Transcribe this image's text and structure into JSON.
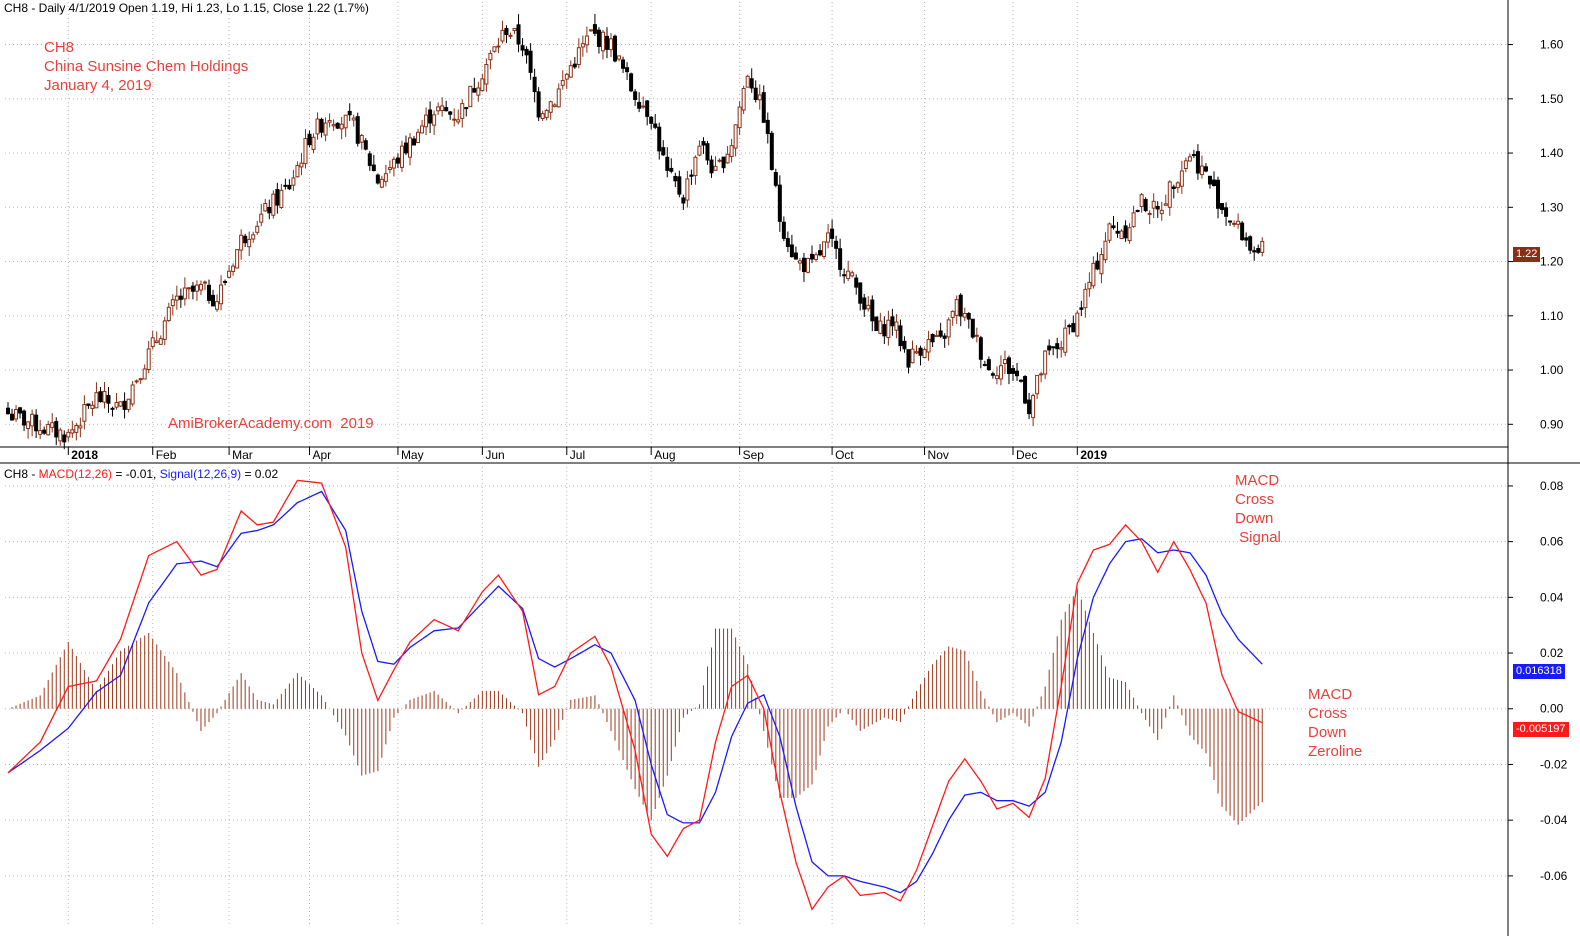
{
  "header": {
    "price_info": "CH8 - Daily 4/1/2019 Open 1.19, Hi 1.23, Lo 1.15, Close 1.22 (1.7%)",
    "ind_prefix": "CH8 - ",
    "macd_label": "MACD(12,26)",
    "macd_value": " = -0.01, ",
    "signal_label": "Signal(12,26,9)",
    "signal_value": " = 0.02"
  },
  "annotations": {
    "symbol": "CH8",
    "company": "China Sunsine Chem Holdings",
    "date": "January 4, 2019",
    "watermark": "AmiBrokerAcademy.com  2019",
    "macd_signal_note": "MACD\nCross\nDown\n Signal",
    "macd_zero_note": "MACD\nCross\nDown\nZeroline"
  },
  "tags": {
    "last_price": "1.22",
    "signal_last": "0.016318",
    "macd_last": "-0.005197"
  },
  "colors": {
    "up_candle": "#8b2f14",
    "down_candle": "#000000",
    "macd_line": "#ff1a1a",
    "signal_line": "#1a1aff",
    "histogram": "#a0391c",
    "annotation": "#e8403a",
    "grid": "#b8b8b8"
  },
  "chart_data": [
    {
      "type": "candlestick",
      "title": "CH8 - Daily",
      "month_labels": [
        "2018",
        "Feb",
        "Mar",
        "Apr",
        "May",
        "Jun",
        "Jul",
        "Aug",
        "Sep",
        "Oct",
        "Nov",
        "Dec",
        "2019"
      ],
      "ylim": [
        0.86,
        1.66
      ],
      "yticks": [
        "0.90",
        "1.00",
        "1.10",
        "1.20",
        "1.30",
        "1.40",
        "1.50",
        "1.60"
      ],
      "grid": true,
      "close_path": [
        {
          "t": 0,
          "v": 0.92
        },
        {
          "t": 10,
          "v": 0.89
        },
        {
          "t": 15,
          "v": 0.88
        },
        {
          "t": 22,
          "v": 0.95
        },
        {
          "t": 28,
          "v": 0.93
        },
        {
          "t": 35,
          "v": 1.03
        },
        {
          "t": 42,
          "v": 1.13
        },
        {
          "t": 48,
          "v": 1.15
        },
        {
          "t": 52,
          "v": 1.13
        },
        {
          "t": 58,
          "v": 1.24
        },
        {
          "t": 65,
          "v": 1.3
        },
        {
          "t": 70,
          "v": 1.34
        },
        {
          "t": 75,
          "v": 1.43
        },
        {
          "t": 80,
          "v": 1.47
        },
        {
          "t": 86,
          "v": 1.45
        },
        {
          "t": 92,
          "v": 1.35
        },
        {
          "t": 96,
          "v": 1.38
        },
        {
          "t": 100,
          "v": 1.42
        },
        {
          "t": 106,
          "v": 1.48
        },
        {
          "t": 112,
          "v": 1.47
        },
        {
          "t": 118,
          "v": 1.55
        },
        {
          "t": 124,
          "v": 1.63
        },
        {
          "t": 128,
          "v": 1.6
        },
        {
          "t": 132,
          "v": 1.48
        },
        {
          "t": 136,
          "v": 1.5
        },
        {
          "t": 140,
          "v": 1.56
        },
        {
          "t": 145,
          "v": 1.62
        },
        {
          "t": 150,
          "v": 1.6
        },
        {
          "t": 155,
          "v": 1.52
        },
        {
          "t": 160,
          "v": 1.47
        },
        {
          "t": 164,
          "v": 1.36
        },
        {
          "t": 168,
          "v": 1.32
        },
        {
          "t": 172,
          "v": 1.42
        },
        {
          "t": 176,
          "v": 1.36
        },
        {
          "t": 180,
          "v": 1.42
        },
        {
          "t": 184,
          "v": 1.55
        },
        {
          "t": 188,
          "v": 1.47
        },
        {
          "t": 192,
          "v": 1.28
        },
        {
          "t": 196,
          "v": 1.2
        },
        {
          "t": 200,
          "v": 1.19
        },
        {
          "t": 204,
          "v": 1.24
        },
        {
          "t": 208,
          "v": 1.19
        },
        {
          "t": 212,
          "v": 1.14
        },
        {
          "t": 216,
          "v": 1.07
        },
        {
          "t": 220,
          "v": 1.09
        },
        {
          "t": 224,
          "v": 1.02
        },
        {
          "t": 228,
          "v": 1.05
        },
        {
          "t": 232,
          "v": 1.05
        },
        {
          "t": 236,
          "v": 1.12
        },
        {
          "t": 240,
          "v": 1.07
        },
        {
          "t": 244,
          "v": 1.0
        },
        {
          "t": 248,
          "v": 1.01
        },
        {
          "t": 252,
          "v": 0.98
        },
        {
          "t": 254,
          "v": 0.93
        },
        {
          "t": 258,
          "v": 1.02
        },
        {
          "t": 262,
          "v": 1.05
        },
        {
          "t": 266,
          "v": 1.1
        },
        {
          "t": 270,
          "v": 1.18
        },
        {
          "t": 274,
          "v": 1.26
        },
        {
          "t": 278,
          "v": 1.26
        },
        {
          "t": 282,
          "v": 1.31
        },
        {
          "t": 286,
          "v": 1.29
        },
        {
          "t": 290,
          "v": 1.35
        },
        {
          "t": 294,
          "v": 1.4
        },
        {
          "t": 298,
          "v": 1.36
        },
        {
          "t": 302,
          "v": 1.3
        },
        {
          "t": 306,
          "v": 1.26
        },
        {
          "t": 310,
          "v": 1.22
        },
        {
          "t": 311,
          "v": 1.2
        },
        {
          "t": 312,
          "v": 1.22
        }
      ]
    },
    {
      "type": "line",
      "title": "MACD(12,26) and Signal(12,26,9)",
      "ylim": [
        -0.078,
        0.085
      ],
      "yticks": [
        "-0.06",
        "-0.04",
        "-0.02",
        "0.00",
        "0.02",
        "0.04",
        "0.06",
        "0.08"
      ],
      "grid": true,
      "series": [
        {
          "name": "MACD(12,26)",
          "points": [
            {
              "t": 0,
              "v": -0.023
            },
            {
              "t": 8,
              "v": -0.012
            },
            {
              "t": 15,
              "v": 0.008
            },
            {
              "t": 22,
              "v": 0.01
            },
            {
              "t": 28,
              "v": 0.025
            },
            {
              "t": 35,
              "v": 0.055
            },
            {
              "t": 42,
              "v": 0.06
            },
            {
              "t": 48,
              "v": 0.048
            },
            {
              "t": 52,
              "v": 0.05
            },
            {
              "t": 58,
              "v": 0.071
            },
            {
              "t": 62,
              "v": 0.066
            },
            {
              "t": 66,
              "v": 0.067
            },
            {
              "t": 72,
              "v": 0.082
            },
            {
              "t": 78,
              "v": 0.081
            },
            {
              "t": 84,
              "v": 0.058
            },
            {
              "t": 88,
              "v": 0.02
            },
            {
              "t": 92,
              "v": 0.003
            },
            {
              "t": 96,
              "v": 0.014
            },
            {
              "t": 100,
              "v": 0.024
            },
            {
              "t": 106,
              "v": 0.032
            },
            {
              "t": 112,
              "v": 0.028
            },
            {
              "t": 118,
              "v": 0.042
            },
            {
              "t": 122,
              "v": 0.048
            },
            {
              "t": 128,
              "v": 0.035
            },
            {
              "t": 132,
              "v": 0.005
            },
            {
              "t": 136,
              "v": 0.008
            },
            {
              "t": 140,
              "v": 0.02
            },
            {
              "t": 146,
              "v": 0.026
            },
            {
              "t": 150,
              "v": 0.015
            },
            {
              "t": 156,
              "v": -0.015
            },
            {
              "t": 160,
              "v": -0.045
            },
            {
              "t": 164,
              "v": -0.053
            },
            {
              "t": 168,
              "v": -0.043
            },
            {
              "t": 172,
              "v": -0.04
            },
            {
              "t": 176,
              "v": -0.012
            },
            {
              "t": 180,
              "v": 0.008
            },
            {
              "t": 184,
              "v": 0.012
            },
            {
              "t": 188,
              "v": 0.0
            },
            {
              "t": 192,
              "v": -0.03
            },
            {
              "t": 196,
              "v": -0.055
            },
            {
              "t": 200,
              "v": -0.072
            },
            {
              "t": 204,
              "v": -0.064
            },
            {
              "t": 208,
              "v": -0.06
            },
            {
              "t": 212,
              "v": -0.067
            },
            {
              "t": 218,
              "v": -0.066
            },
            {
              "t": 222,
              "v": -0.069
            },
            {
              "t": 226,
              "v": -0.058
            },
            {
              "t": 230,
              "v": -0.042
            },
            {
              "t": 234,
              "v": -0.026
            },
            {
              "t": 238,
              "v": -0.018
            },
            {
              "t": 242,
              "v": -0.026
            },
            {
              "t": 246,
              "v": -0.036
            },
            {
              "t": 250,
              "v": -0.034
            },
            {
              "t": 254,
              "v": -0.039
            },
            {
              "t": 258,
              "v": -0.025
            },
            {
              "t": 262,
              "v": 0.008
            },
            {
              "t": 266,
              "v": 0.045
            },
            {
              "t": 270,
              "v": 0.057
            },
            {
              "t": 274,
              "v": 0.059
            },
            {
              "t": 278,
              "v": 0.066
            },
            {
              "t": 282,
              "v": 0.06
            },
            {
              "t": 286,
              "v": 0.049
            },
            {
              "t": 290,
              "v": 0.06
            },
            {
              "t": 294,
              "v": 0.05
            },
            {
              "t": 298,
              "v": 0.038
            },
            {
              "t": 302,
              "v": 0.012
            },
            {
              "t": 306,
              "v": -0.001
            },
            {
              "t": 312,
              "v": -0.005
            }
          ]
        },
        {
          "name": "Signal(12,26,9)",
          "points": [
            {
              "t": 0,
              "v": -0.023
            },
            {
              "t": 8,
              "v": -0.015
            },
            {
              "t": 15,
              "v": -0.007
            },
            {
              "t": 22,
              "v": 0.006
            },
            {
              "t": 28,
              "v": 0.012
            },
            {
              "t": 35,
              "v": 0.038
            },
            {
              "t": 42,
              "v": 0.052
            },
            {
              "t": 48,
              "v": 0.053
            },
            {
              "t": 52,
              "v": 0.051
            },
            {
              "t": 58,
              "v": 0.063
            },
            {
              "t": 62,
              "v": 0.064
            },
            {
              "t": 66,
              "v": 0.066
            },
            {
              "t": 72,
              "v": 0.074
            },
            {
              "t": 78,
              "v": 0.078
            },
            {
              "t": 84,
              "v": 0.064
            },
            {
              "t": 88,
              "v": 0.035
            },
            {
              "t": 92,
              "v": 0.017
            },
            {
              "t": 96,
              "v": 0.016
            },
            {
              "t": 100,
              "v": 0.022
            },
            {
              "t": 106,
              "v": 0.028
            },
            {
              "t": 112,
              "v": 0.029
            },
            {
              "t": 118,
              "v": 0.038
            },
            {
              "t": 122,
              "v": 0.044
            },
            {
              "t": 128,
              "v": 0.036
            },
            {
              "t": 132,
              "v": 0.018
            },
            {
              "t": 136,
              "v": 0.015
            },
            {
              "t": 140,
              "v": 0.018
            },
            {
              "t": 146,
              "v": 0.023
            },
            {
              "t": 150,
              "v": 0.02
            },
            {
              "t": 156,
              "v": 0.003
            },
            {
              "t": 160,
              "v": -0.02
            },
            {
              "t": 164,
              "v": -0.038
            },
            {
              "t": 168,
              "v": -0.041
            },
            {
              "t": 172,
              "v": -0.041
            },
            {
              "t": 176,
              "v": -0.03
            },
            {
              "t": 180,
              "v": -0.01
            },
            {
              "t": 184,
              "v": 0.002
            },
            {
              "t": 188,
              "v": 0.005
            },
            {
              "t": 192,
              "v": -0.01
            },
            {
              "t": 196,
              "v": -0.035
            },
            {
              "t": 200,
              "v": -0.055
            },
            {
              "t": 204,
              "v": -0.06
            },
            {
              "t": 208,
              "v": -0.06
            },
            {
              "t": 212,
              "v": -0.062
            },
            {
              "t": 218,
              "v": -0.064
            },
            {
              "t": 222,
              "v": -0.066
            },
            {
              "t": 226,
              "v": -0.062
            },
            {
              "t": 230,
              "v": -0.052
            },
            {
              "t": 234,
              "v": -0.04
            },
            {
              "t": 238,
              "v": -0.031
            },
            {
              "t": 242,
              "v": -0.03
            },
            {
              "t": 246,
              "v": -0.033
            },
            {
              "t": 250,
              "v": -0.033
            },
            {
              "t": 254,
              "v": -0.035
            },
            {
              "t": 258,
              "v": -0.03
            },
            {
              "t": 262,
              "v": -0.012
            },
            {
              "t": 266,
              "v": 0.018
            },
            {
              "t": 270,
              "v": 0.04
            },
            {
              "t": 274,
              "v": 0.052
            },
            {
              "t": 278,
              "v": 0.06
            },
            {
              "t": 282,
              "v": 0.061
            },
            {
              "t": 286,
              "v": 0.056
            },
            {
              "t": 290,
              "v": 0.057
            },
            {
              "t": 294,
              "v": 0.056
            },
            {
              "t": 298,
              "v": 0.048
            },
            {
              "t": 302,
              "v": 0.034
            },
            {
              "t": 306,
              "v": 0.025
            },
            {
              "t": 312,
              "v": 0.016
            }
          ]
        }
      ],
      "histogram": "MACD minus Signal",
      "last_values": {
        "signal": 0.016318,
        "macd": -0.005197
      }
    }
  ]
}
